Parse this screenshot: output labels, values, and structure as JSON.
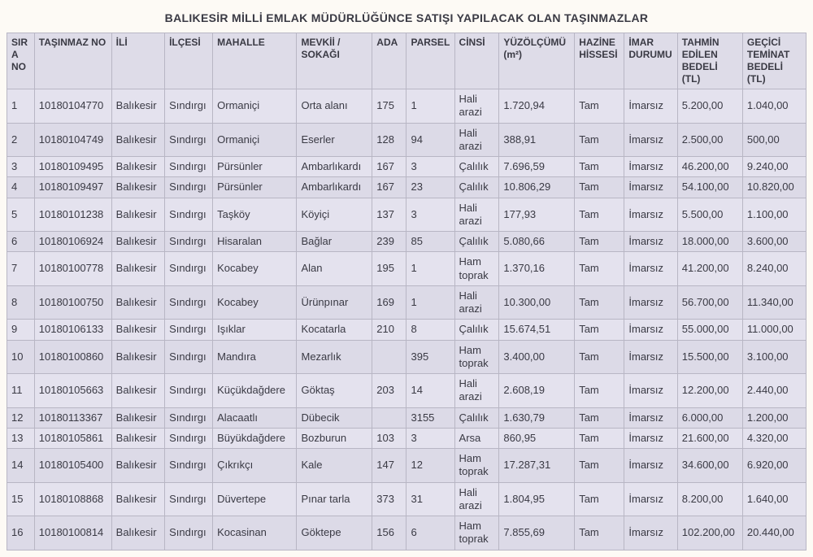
{
  "title": "BALIKESİR MİLLİ EMLAK MÜDÜRLÜĞÜNCE SATIŞI YAPILACAK OLAN TAŞINMAZLAR",
  "columns": [
    "SIRA NO",
    "TAŞINMAZ NO",
    "İLİ",
    "İLÇESİ",
    "MAHALLE",
    "MEVKİİ / SOKAĞI",
    "ADA",
    "PARSEL",
    "CİNSİ",
    "YÜZÖLÇÜMÜ (m²)",
    "HAZİNE HİSSESİ",
    "İMAR DURUMU",
    "TAHMİN EDİLEN BEDELİ (TL)",
    "GEÇİCİ TEMİNAT BEDELİ (TL)"
  ],
  "rows": [
    [
      "1",
      "10180104770",
      "Balıkesir",
      "Sındırgı",
      "Ormaniçi",
      "Orta alanı",
      "175",
      "1",
      "Hali arazi",
      "1.720,94",
      "Tam",
      "İmarsız",
      "5.200,00",
      "1.040,00"
    ],
    [
      "2",
      "10180104749",
      "Balıkesir",
      "Sındırgı",
      "Ormaniçi",
      "Eserler",
      "128",
      "94",
      "Hali arazi",
      "388,91",
      "Tam",
      "İmarsız",
      "2.500,00",
      "500,00"
    ],
    [
      "3",
      "10180109495",
      "Balıkesir",
      "Sındırgı",
      "Pürsünler",
      "Ambarlıkardı",
      "167",
      "3",
      "Çalılık",
      "7.696,59",
      "Tam",
      "İmarsız",
      "46.200,00",
      "9.240,00"
    ],
    [
      "4",
      "10180109497",
      "Balıkesir",
      "Sındırgı",
      "Pürsünler",
      "Ambarlıkardı",
      "167",
      "23",
      "Çalılık",
      "10.806,29",
      "Tam",
      "İmarsız",
      "54.100,00",
      "10.820,00"
    ],
    [
      "5",
      "10180101238",
      "Balıkesir",
      "Sındırgı",
      "Taşköy",
      "Köyiçi",
      "137",
      "3",
      "Hali arazi",
      "177,93",
      "Tam",
      "İmarsız",
      "5.500,00",
      "1.100,00"
    ],
    [
      "6",
      "10180106924",
      "Balıkesir",
      "Sındırgı",
      "Hisaralan",
      "Bağlar",
      "239",
      "85",
      "Çalılık",
      "5.080,66",
      "Tam",
      "İmarsız",
      "18.000,00",
      "3.600,00"
    ],
    [
      "7",
      "10180100778",
      "Balıkesir",
      "Sındırgı",
      "Kocabey",
      "Alan",
      "195",
      "1",
      "Ham toprak",
      "1.370,16",
      "Tam",
      "İmarsız",
      "41.200,00",
      "8.240,00"
    ],
    [
      "8",
      "10180100750",
      "Balıkesir",
      "Sındırgı",
      "Kocabey",
      "Ürünpınar",
      "169",
      "1",
      "Hali arazi",
      "10.300,00",
      "Tam",
      "İmarsız",
      "56.700,00",
      "11.340,00"
    ],
    [
      "9",
      "10180106133",
      "Balıkesir",
      "Sındırgı",
      "Işıklar",
      "Kocatarla",
      "210",
      "8",
      "Çalılık",
      "15.674,51",
      "Tam",
      "İmarsız",
      "55.000,00",
      "11.000,00"
    ],
    [
      "10",
      "10180100860",
      "Balıkesir",
      "Sındırgı",
      "Mandıra",
      "Mezarlık",
      "",
      "395",
      "Ham toprak",
      "3.400,00",
      "Tam",
      "İmarsız",
      "15.500,00",
      "3.100,00"
    ],
    [
      "11",
      "10180105663",
      "Balıkesir",
      "Sındırgı",
      "Küçükdağdere",
      "Göktaş",
      "203",
      "14",
      "Hali arazi",
      "2.608,19",
      "Tam",
      "İmarsız",
      "12.200,00",
      "2.440,00"
    ],
    [
      "12",
      "10180113367",
      "Balıkesir",
      "Sındırgı",
      "Alacaatlı",
      "Dübecik",
      "",
      "3155",
      "Çalılık",
      "1.630,79",
      "Tam",
      "İmarsız",
      "6.000,00",
      "1.200,00"
    ],
    [
      "13",
      "10180105861",
      "Balıkesir",
      "Sındırgı",
      "Büyükdağdere",
      "Bozburun",
      "103",
      "3",
      "Arsa",
      "860,95",
      "Tam",
      "İmarsız",
      "21.600,00",
      "4.320,00"
    ],
    [
      "14",
      "10180105400",
      "Balıkesir",
      "Sındırgı",
      "Çıkrıkçı",
      "Kale",
      "147",
      "12",
      "Ham toprak",
      "17.287,31",
      "Tam",
      "İmarsız",
      "34.600,00",
      "6.920,00"
    ],
    [
      "15",
      "10180108868",
      "Balıkesir",
      "Sındırgı",
      "Düvertepe",
      "Pınar tarla",
      "373",
      "31",
      "Hali arazi",
      "1.804,95",
      "Tam",
      "İmarsız",
      "8.200,00",
      "1.640,00"
    ],
    [
      "16",
      "10180100814",
      "Balıkesir",
      "Sındırgı",
      "Kocasinan",
      "Göktepe",
      "156",
      "6",
      "Ham toprak",
      "7.855,69",
      "Tam",
      "İmarsız",
      "102.200,00",
      "20.440,00"
    ]
  ],
  "colClasses": [
    "c-sira",
    "c-tno",
    "c-ili",
    "c-ilce",
    "c-mah",
    "c-mevki",
    "c-ada",
    "c-parsel",
    "c-cinsi",
    "c-yuz",
    "c-hazine",
    "c-imar",
    "c-tahmin",
    "c-gecici"
  ],
  "colNames": [
    "sira-no",
    "tasinmaz-no",
    "ili",
    "ilcesi",
    "mahalle",
    "mevkii-sokagi",
    "ada",
    "parsel",
    "cinsi",
    "yuzolcumu",
    "hazine-hissesi",
    "imar-durumu",
    "tahmin-bedeli",
    "gecici-teminat"
  ]
}
